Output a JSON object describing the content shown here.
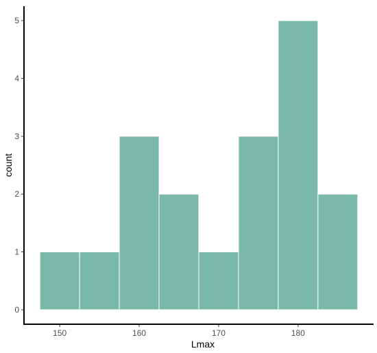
{
  "chart_data": {
    "type": "bar",
    "histogram": true,
    "bins": [
      {
        "x0": 147.5,
        "x1": 152.5,
        "count": 1
      },
      {
        "x0": 152.5,
        "x1": 157.5,
        "count": 1
      },
      {
        "x0": 157.5,
        "x1": 162.5,
        "count": 3
      },
      {
        "x0": 162.5,
        "x1": 167.5,
        "count": 2
      },
      {
        "x0": 167.5,
        "x1": 172.5,
        "count": 1
      },
      {
        "x0": 172.5,
        "x1": 177.5,
        "count": 3
      },
      {
        "x0": 177.5,
        "x1": 182.5,
        "count": 5
      },
      {
        "x0": 182.5,
        "x1": 187.5,
        "count": 2
      }
    ],
    "xlabel": "Lmax",
    "ylabel": "count",
    "xticks": [
      150,
      160,
      170,
      180
    ],
    "yticks": [
      0,
      1,
      2,
      3,
      4,
      5
    ],
    "xlim": [
      145.5,
      189.5
    ],
    "ylim": [
      -0.25,
      5.25
    ],
    "grid": false,
    "colors": {
      "bar_fill": "#7ab8aa",
      "bar_stroke": "#ffffff",
      "axis": "#000000",
      "tick_text": "#4d4d4d"
    }
  }
}
